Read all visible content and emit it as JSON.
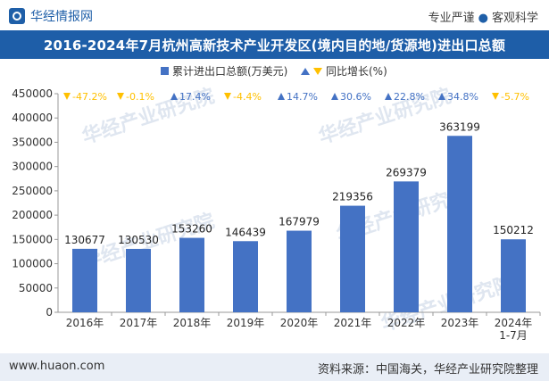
{
  "header": {
    "brand": "华经情报网",
    "slogan_left": "专业严谨",
    "slogan_sep": "●",
    "slogan_right": "客观科学"
  },
  "title": "2016-2024年7月杭州高新技术产业开发区(境内目的地/货源地)进出口总额",
  "footer": {
    "url": "www.huaon.com",
    "source": "资料来源：中国海关，华经产业研究院整理"
  },
  "watermark": "华经产业研究院",
  "colors": {
    "bar": "#4472c4",
    "up": "#4472c4",
    "down": "#ffc000",
    "title_bg": "#1e5ea8",
    "footer_bg": "#e9eef6"
  },
  "chart_data": {
    "type": "bar",
    "categories": [
      "2016年",
      "2017年",
      "2018年",
      "2019年",
      "2020年",
      "2021年",
      "2022年",
      "2023年",
      "2024年\n1-7月"
    ],
    "series": [
      {
        "name": "累计进出口总额(万美元)",
        "values": [
          130677,
          130530,
          153260,
          146439,
          167979,
          219356,
          269379,
          363199,
          150212
        ]
      }
    ],
    "growth": {
      "name": "同比增长(%)",
      "labels": [
        "-47.2%",
        "-0.1%",
        "17.4%",
        "-4.4%",
        "14.7%",
        "30.6%",
        "22.8%",
        "34.8%",
        "-5.7%"
      ],
      "values": [
        -47.2,
        -0.1,
        17.4,
        -4.4,
        14.7,
        30.6,
        22.8,
        34.8,
        -5.7
      ]
    },
    "ylim": [
      0,
      450000
    ],
    "yticks": [
      "0",
      "50000",
      "100000",
      "150000",
      "200000",
      "250000",
      "300000",
      "350000",
      "400000",
      "450000"
    ],
    "legend_position": "top-center",
    "grid": false
  }
}
